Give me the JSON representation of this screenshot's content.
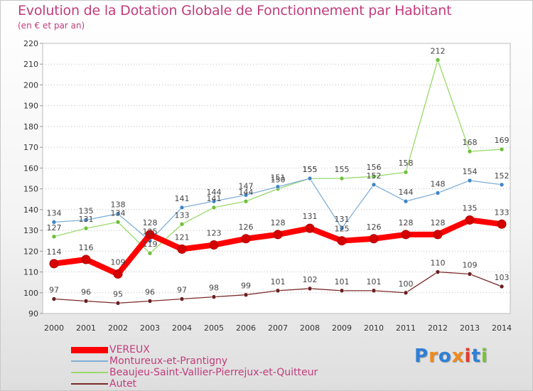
{
  "title": "Evolution de la Dotation Globale de Fonctionnement par Habitant",
  "subtitle": "(en € et par an)",
  "logo": {
    "text": "Proxiti",
    "colors": [
      "#2f7fd6",
      "#ef8a1c",
      "#2f7fd6",
      "#ef8a1c",
      "#e33b2f",
      "#2f7fd6",
      "#79c238"
    ]
  },
  "chart_data": {
    "type": "line",
    "title": "Evolution de la Dotation Globale de Fonctionnement par Habitant",
    "subtitle": "(en € et par an)",
    "xlabel": "",
    "ylabel": "",
    "ylim": [
      90,
      220
    ],
    "yticks": [
      90,
      100,
      110,
      120,
      130,
      140,
      150,
      160,
      170,
      180,
      190,
      200,
      210,
      220
    ],
    "x": [
      "2000",
      "2001",
      "2002",
      "2003",
      "2004",
      "2005",
      "2006",
      "2007",
      "2008",
      "2009",
      "2010",
      "2011",
      "2012",
      "2013",
      "2014"
    ],
    "grid": "horizontal dotted",
    "legend": "bottom-left",
    "series": [
      {
        "name": "VEREUX",
        "color": "#ff0000",
        "marker": "#d40000",
        "values": [
          114,
          116,
          109,
          128,
          121,
          123,
          126,
          128,
          131,
          125,
          126,
          128,
          128,
          135,
          133
        ]
      },
      {
        "name": "Montureux-et-Prantigny",
        "color": "#7fafd8",
        "marker": "#3f86c6",
        "values": [
          134,
          135,
          138,
          125,
          141,
          144,
          147,
          151,
          155,
          131,
          152,
          144,
          148,
          154,
          152
        ]
      },
      {
        "name": "Beaujeu-Saint-Vallier-Pierrejux-et-Quitteur",
        "color": "#99d96a",
        "marker": "#6cc03a",
        "values": [
          127,
          131,
          134,
          119,
          133,
          141,
          144,
          150,
          155,
          155,
          156,
          158,
          212,
          168,
          169
        ]
      },
      {
        "name": "Autet",
        "color": "#7a2a2a",
        "marker": "#6a1e1e",
        "values": [
          97,
          96,
          95,
          96,
          97,
          98,
          99,
          101,
          102,
          101,
          101,
          100,
          110,
          109,
          103
        ]
      }
    ]
  }
}
